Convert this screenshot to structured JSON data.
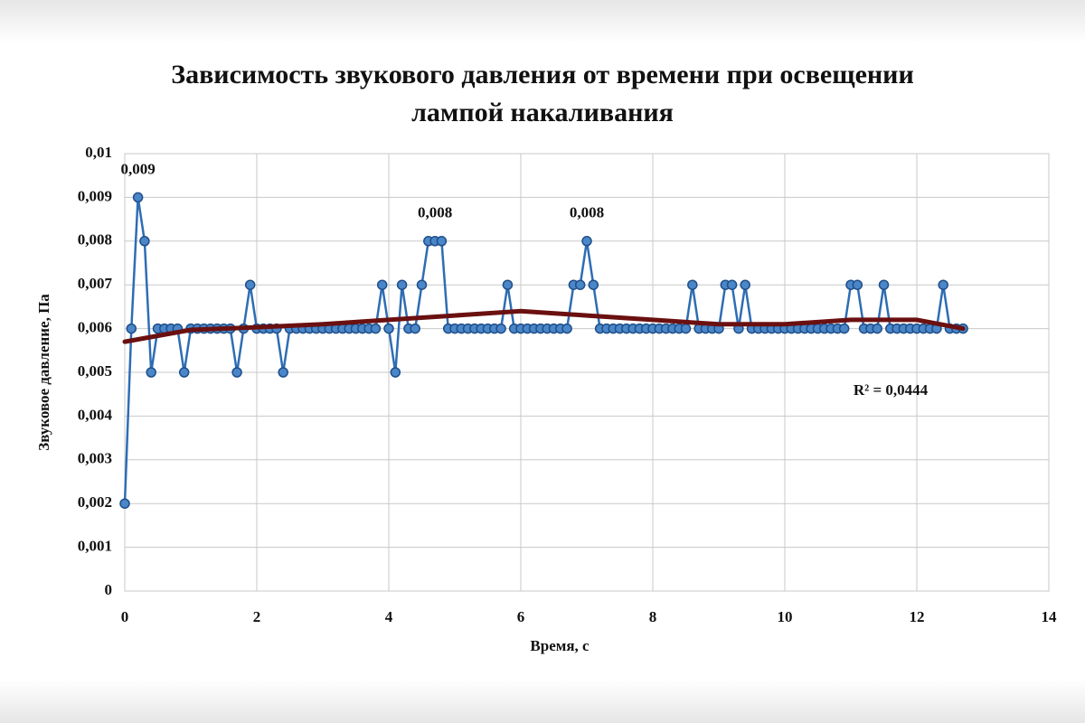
{
  "chart_data": {
    "type": "line",
    "title": "Зависимость звукового давления от времени при освещении лампой накаливания",
    "xlabel": "Время, с",
    "ylabel": "Звуковое давление, Па",
    "annotations": [
      "R² = 0,0444"
    ],
    "xlim": [
      0,
      14
    ],
    "xticks": [
      0,
      2,
      4,
      6,
      8,
      10,
      12,
      14
    ],
    "ylim": [
      0,
      0.01
    ],
    "yticks": [
      0,
      {
        "value": 0.001,
        "label": "0,001"
      },
      {
        "value": 0.002,
        "label": "0,002"
      },
      {
        "value": 0.003,
        "label": "0,003"
      },
      {
        "value": 0.004,
        "label": "0,004"
      },
      {
        "value": 0.005,
        "label": "0,005"
      },
      {
        "value": 0.006,
        "label": "0,006"
      },
      {
        "value": 0.007,
        "label": "0,007"
      },
      {
        "value": 0.008,
        "label": "0,008"
      },
      {
        "value": 0.009,
        "label": "0,009"
      },
      {
        "value": 0.01,
        "label": "0,01"
      }
    ],
    "grid": true,
    "series": [
      {
        "color": "#2e6db4",
        "x": [
          0,
          0.1,
          0.2,
          0.3,
          0.4,
          0.5,
          0.6,
          0.7,
          0.8,
          0.9,
          1,
          1.1,
          1.2,
          1.3,
          1.4,
          1.5,
          1.6,
          1.7,
          1.8,
          1.9,
          2,
          2.1,
          2.2,
          2.3,
          2.4,
          2.5,
          2.6,
          2.7,
          2.8,
          2.9,
          3,
          3.1,
          3.2,
          3.3,
          3.4,
          3.5,
          3.6,
          3.7,
          3.8,
          3.9,
          4,
          4.1,
          4.2,
          4.3,
          4.4,
          4.5,
          4.6,
          4.7,
          4.8,
          4.9,
          5,
          5.1,
          5.2,
          5.3,
          5.4,
          5.5,
          5.6,
          5.7,
          5.8,
          5.9,
          6,
          6.1,
          6.2,
          6.3,
          6.4,
          6.5,
          6.6,
          6.7,
          6.8,
          6.9,
          7,
          7.1,
          7.2,
          7.3,
          7.4,
          7.5,
          7.6,
          7.7,
          7.8,
          7.9,
          8,
          8.1,
          8.2,
          8.3,
          8.4,
          8.5,
          8.6,
          8.7,
          8.8,
          8.9,
          9,
          9.1,
          9.2,
          9.3,
          9.4,
          9.5,
          9.6,
          9.7,
          9.8,
          9.9,
          10,
          10.1,
          10.2,
          10.3,
          10.4,
          10.5,
          10.6,
          10.7,
          10.8,
          10.9,
          11,
          11.1,
          11.2,
          11.3,
          11.4,
          11.5,
          11.6,
          11.7,
          11.8,
          11.9,
          12,
          12.1,
          12.2,
          12.3,
          12.4,
          12.5,
          12.6,
          12.7
        ],
        "values": [
          0.002,
          0.006,
          0.009,
          0.008,
          0.005,
          0.006,
          0.006,
          0.006,
          0.006,
          0.005,
          0.006,
          0.006,
          0.006,
          0.006,
          0.006,
          0.006,
          0.006,
          0.005,
          0.006,
          0.007,
          0.006,
          0.006,
          0.006,
          0.006,
          0.005,
          0.006,
          0.006,
          0.006,
          0.006,
          0.006,
          0.006,
          0.006,
          0.006,
          0.006,
          0.006,
          0.006,
          0.006,
          0.006,
          0.006,
          0.007,
          0.006,
          0.005,
          0.007,
          0.006,
          0.006,
          0.007,
          0.008,
          0.008,
          0.008,
          0.006,
          0.006,
          0.006,
          0.006,
          0.006,
          0.006,
          0.006,
          0.006,
          0.006,
          0.007,
          0.006,
          0.006,
          0.006,
          0.006,
          0.006,
          0.006,
          0.006,
          0.006,
          0.006,
          0.007,
          0.007,
          0.008,
          0.007,
          0.006,
          0.006,
          0.006,
          0.006,
          0.006,
          0.006,
          0.006,
          0.006,
          0.006,
          0.006,
          0.006,
          0.006,
          0.006,
          0.006,
          0.007,
          0.006,
          0.006,
          0.006,
          0.006,
          0.007,
          0.007,
          0.006,
          0.007,
          0.006,
          0.006,
          0.006,
          0.006,
          0.006,
          0.006,
          0.006,
          0.006,
          0.006,
          0.006,
          0.006,
          0.006,
          0.006,
          0.006,
          0.006,
          0.007,
          0.007,
          0.006,
          0.006,
          0.006,
          0.007,
          0.006,
          0.006,
          0.006,
          0.006,
          0.006,
          0.006,
          0.006,
          0.006,
          0.007,
          0.006,
          0.006,
          0.006
        ],
        "value_labels": [
          null,
          null,
          "0,009",
          null,
          null,
          null,
          null,
          null,
          null,
          null,
          null,
          null,
          null,
          null,
          null,
          null,
          null,
          null,
          null,
          null,
          null,
          null,
          null,
          null,
          null,
          null,
          null,
          null,
          null,
          null,
          null,
          null,
          null,
          null,
          null,
          null,
          null,
          null,
          null,
          null,
          null,
          null,
          null,
          null,
          null,
          null,
          null,
          "0,008",
          null,
          null,
          null,
          null,
          null,
          null,
          null,
          null,
          null,
          null,
          null,
          null,
          null,
          null,
          null,
          null,
          null,
          null,
          null,
          null,
          null,
          null,
          "0,008",
          null,
          null,
          null,
          null,
          null,
          null,
          null,
          null,
          null,
          null,
          null,
          null,
          null,
          null,
          null,
          null,
          null,
          null,
          null,
          null,
          null,
          null,
          null,
          null,
          null,
          null,
          null,
          null,
          null,
          null,
          null,
          null,
          null,
          null,
          null,
          null,
          null,
          null,
          null,
          null,
          null,
          null,
          null,
          null,
          null,
          null,
          null,
          null,
          null,
          null,
          null,
          null,
          null,
          null,
          null,
          null,
          null
        ]
      },
      {
        "color": "#6b1010",
        "x": [
          0,
          1,
          2,
          3,
          4,
          5,
          6,
          7,
          8,
          9,
          10,
          11,
          12,
          12.7
        ],
        "values": [
          0.0057,
          0.00597,
          0.00603,
          0.0061,
          0.0062,
          0.0063,
          0.0064,
          0.0063,
          0.0062,
          0.0061,
          0.0061,
          0.0062,
          0.0062,
          0.006
        ]
      }
    ]
  }
}
